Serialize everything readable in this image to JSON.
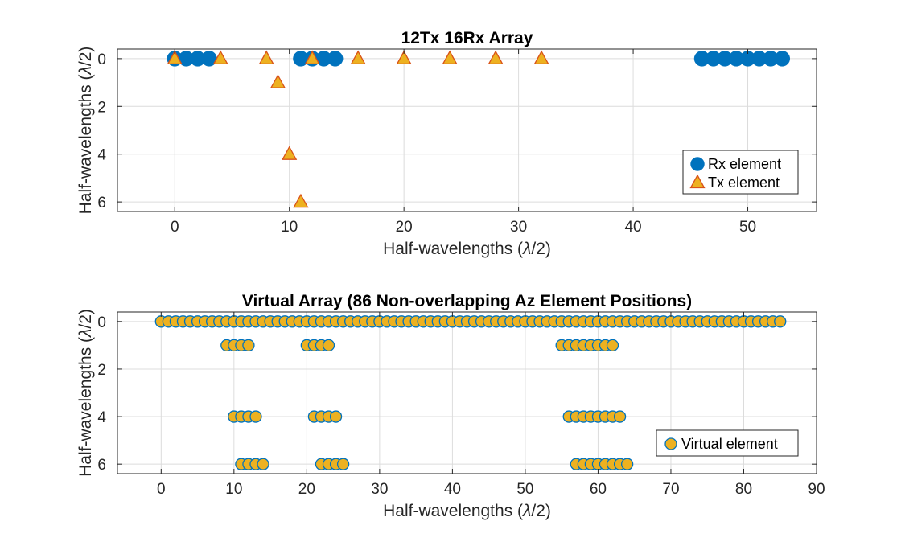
{
  "chart_data": [
    {
      "type": "scatter",
      "title": "12Tx 16Rx Array",
      "xlabel": "Half-wavelengths (",
      "ylabel": "Half-wavelengths (",
      "label_lambda": "λ",
      "label_suffix": "/2)",
      "xlim": [
        -5,
        56
      ],
      "ylim": [
        6.4,
        -0.4
      ],
      "y_reversed": true,
      "xticks": [
        0,
        10,
        20,
        30,
        40,
        50
      ],
      "yticks": [
        0,
        2,
        4,
        6
      ],
      "grid": true,
      "legend_position": "bottom-right",
      "series": [
        {
          "name": "Rx element",
          "marker": "circle",
          "color": "#0072BD",
          "points": [
            [
              0,
              0
            ],
            [
              1,
              0
            ],
            [
              2,
              0
            ],
            [
              3,
              0
            ],
            [
              11,
              0
            ],
            [
              12,
              0
            ],
            [
              13,
              0
            ],
            [
              14,
              0
            ],
            [
              46,
              0
            ],
            [
              47,
              0
            ],
            [
              48,
              0
            ],
            [
              49,
              0
            ],
            [
              50,
              0
            ],
            [
              51,
              0
            ],
            [
              52,
              0
            ],
            [
              53,
              0
            ]
          ]
        },
        {
          "name": "Tx element",
          "marker": "triangle",
          "color": "#EDB120",
          "edge_color": "#D95319",
          "points": [
            [
              0,
              0
            ],
            [
              4,
              0
            ],
            [
              8,
              0
            ],
            [
              12,
              0
            ],
            [
              16,
              0
            ],
            [
              20,
              0
            ],
            [
              24,
              0
            ],
            [
              28,
              0
            ],
            [
              32,
              0
            ],
            [
              9,
              1
            ],
            [
              10,
              4
            ],
            [
              11,
              6
            ]
          ]
        }
      ]
    },
    {
      "type": "scatter",
      "title": "Virtual Array (86 Non-overlapping Az Element Positions)",
      "xlabel": "Half-wavelengths (",
      "ylabel": "Half-wavelengths (",
      "label_lambda": "λ",
      "label_suffix": "/2)",
      "xlim": [
        -6,
        90
      ],
      "ylim": [
        6.4,
        -0.4
      ],
      "y_reversed": true,
      "xticks": [
        0,
        10,
        20,
        30,
        40,
        50,
        60,
        70,
        80,
        90
      ],
      "yticks": [
        0,
        2,
        4,
        6
      ],
      "grid": true,
      "legend_position": "bottom-right",
      "series": [
        {
          "name": "Virtual element",
          "marker": "circle",
          "color": "#EDB120",
          "edge_color": "#0072BD",
          "rows": [
            {
              "y": 0,
              "x": [
                0,
                1,
                2,
                3,
                4,
                5,
                6,
                7,
                8,
                9,
                10,
                11,
                12,
                13,
                14,
                15,
                16,
                17,
                18,
                19,
                20,
                21,
                22,
                23,
                24,
                25,
                26,
                27,
                28,
                29,
                30,
                31,
                32,
                33,
                34,
                35,
                36,
                37,
                38,
                39,
                40,
                41,
                42,
                43,
                44,
                45,
                46,
                47,
                48,
                49,
                50,
                51,
                52,
                53,
                54,
                55,
                56,
                57,
                58,
                59,
                60,
                61,
                62,
                63,
                64,
                65,
                66,
                67,
                68,
                69,
                70,
                71,
                72,
                73,
                74,
                75,
                76,
                77,
                78,
                79,
                80,
                81,
                82,
                83,
                84,
                85
              ]
            },
            {
              "y": 1,
              "x": [
                9,
                10,
                11,
                12,
                20,
                21,
                22,
                23,
                55,
                56,
                57,
                58,
                59,
                60,
                61,
                62
              ]
            },
            {
              "y": 4,
              "x": [
                10,
                11,
                12,
                13,
                21,
                22,
                23,
                24,
                56,
                57,
                58,
                59,
                60,
                61,
                62,
                63
              ]
            },
            {
              "y": 6,
              "x": [
                11,
                12,
                13,
                14,
                22,
                23,
                24,
                25,
                57,
                58,
                59,
                60,
                61,
                62,
                63,
                64
              ]
            }
          ]
        }
      ]
    }
  ]
}
